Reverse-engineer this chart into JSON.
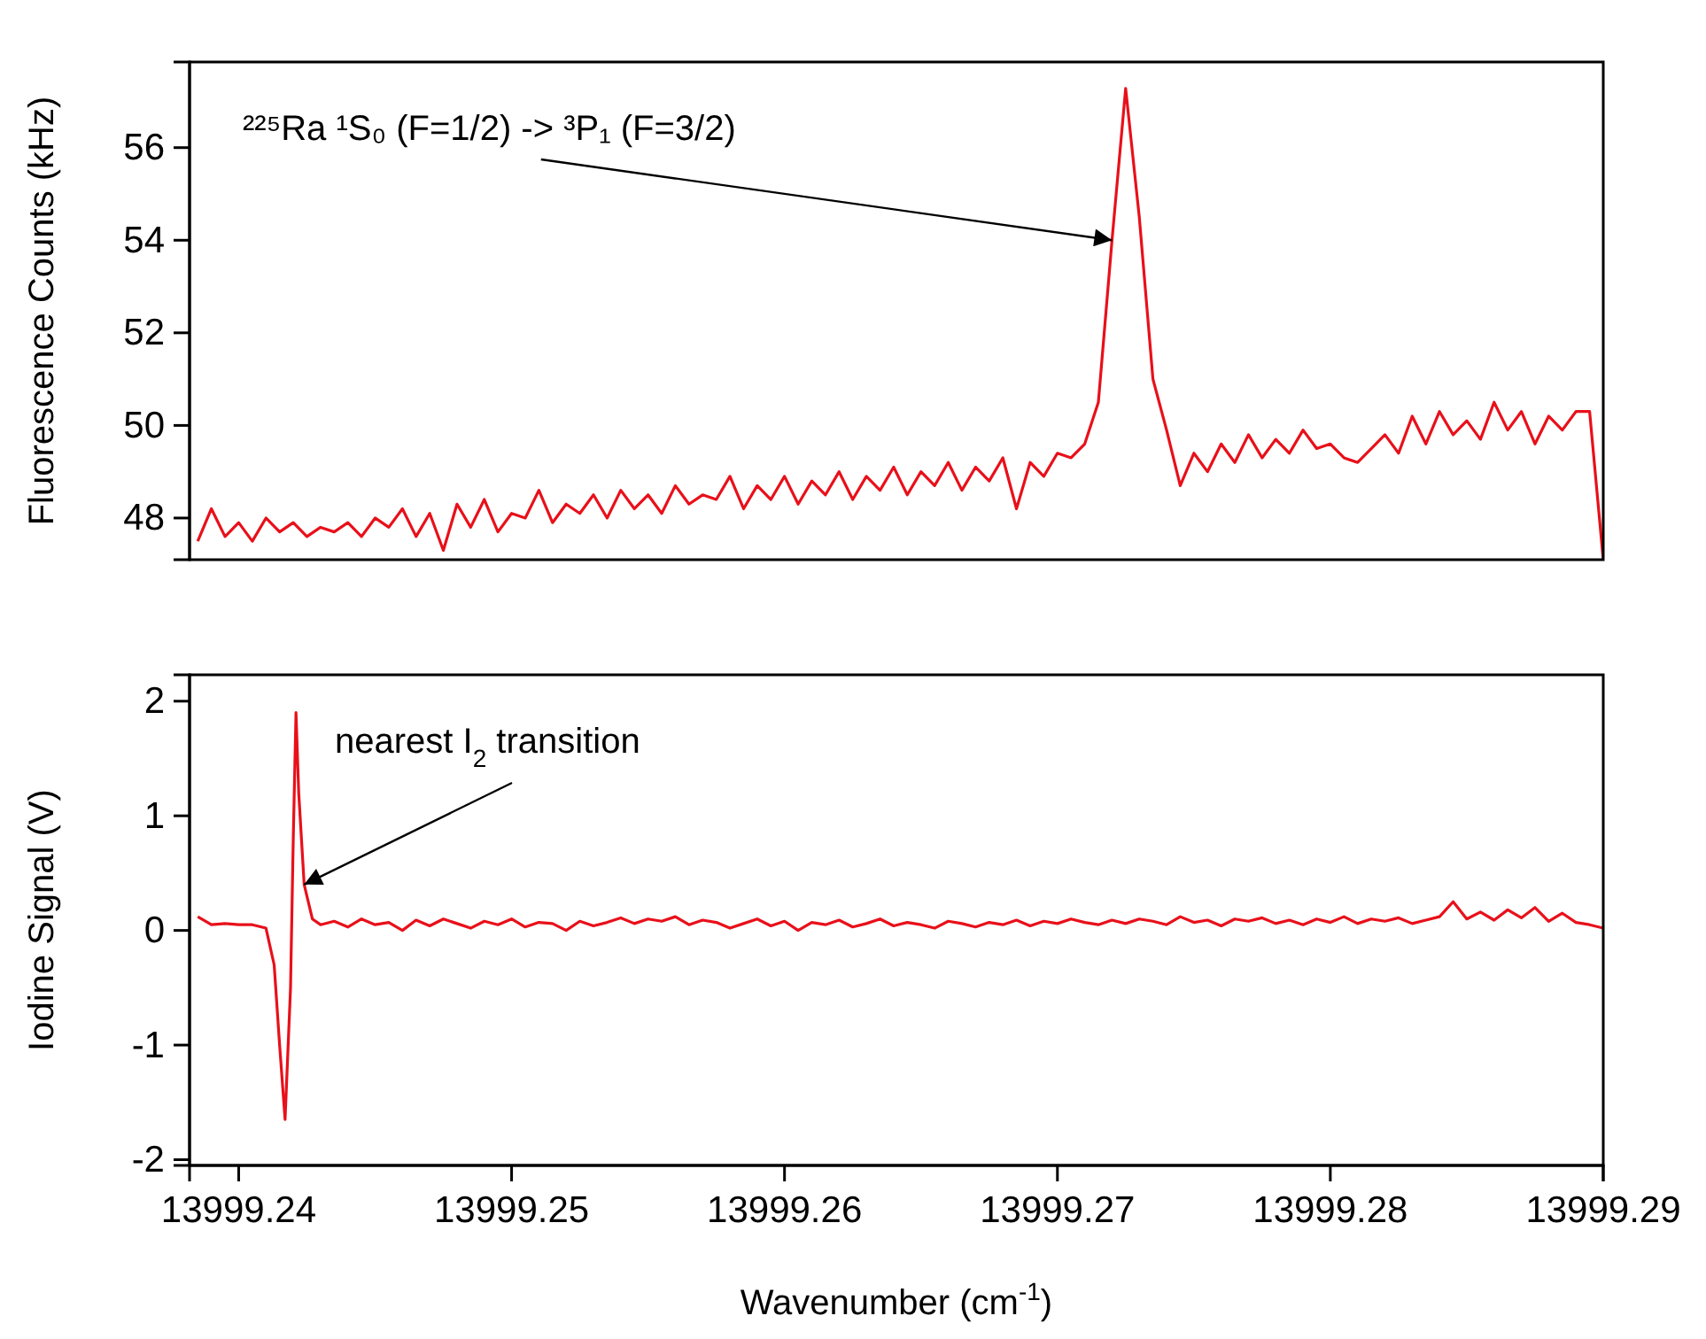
{
  "chart_data": [
    {
      "type": "line",
      "ylabel": "Fluorescence Counts (kHz)",
      "xlim": [
        13999.2382,
        13999.29
      ],
      "ylim": [
        47.1,
        57.85
      ],
      "yticks": [
        48,
        50,
        52,
        54,
        56
      ],
      "tick_labels": "y",
      "annotations": [
        {
          "text": "²²⁵Ra  ¹S₀ (F=1/2) -> ³P₁ (F=3/2)",
          "x": 13999.272,
          "y": 54.0
        }
      ],
      "series": [
        {
          "color": "#e8101a",
          "x": [
            13999.2385,
            13999.239,
            13999.2395,
            13999.24,
            13999.2405,
            13999.241,
            13999.2415,
            13999.242,
            13999.2425,
            13999.243,
            13999.2435,
            13999.244,
            13999.2445,
            13999.245,
            13999.2455,
            13999.246,
            13999.2465,
            13999.247,
            13999.2475,
            13999.248,
            13999.2485,
            13999.249,
            13999.2495,
            13999.25,
            13999.2505,
            13999.251,
            13999.2515,
            13999.252,
            13999.2525,
            13999.253,
            13999.2535,
            13999.254,
            13999.2545,
            13999.255,
            13999.2555,
            13999.256,
            13999.2565,
            13999.257,
            13999.2575,
            13999.258,
            13999.2585,
            13999.259,
            13999.2595,
            13999.26,
            13999.2605,
            13999.261,
            13999.2615,
            13999.262,
            13999.2625,
            13999.263,
            13999.2635,
            13999.264,
            13999.2645,
            13999.265,
            13999.2655,
            13999.266,
            13999.2665,
            13999.267,
            13999.2675,
            13999.268,
            13999.2685,
            13999.269,
            13999.2695,
            13999.27,
            13999.2705,
            13999.271,
            13999.2715,
            13999.272,
            13999.2725,
            13999.273,
            13999.2735,
            13999.274,
            13999.2745,
            13999.275,
            13999.2755,
            13999.276,
            13999.2765,
            13999.277,
            13999.2775,
            13999.278,
            13999.2785,
            13999.279,
            13999.2795,
            13999.28,
            13999.2805,
            13999.281,
            13999.2815,
            13999.282,
            13999.2825,
            13999.283,
            13999.2835,
            13999.284,
            13999.2845,
            13999.285,
            13999.2855,
            13999.286,
            13999.2865,
            13999.287,
            13999.2875,
            13999.288,
            13999.2885,
            13999.289,
            13999.2895,
            13999.29
          ],
          "values": [
            47.5,
            48.2,
            47.6,
            47.9,
            47.5,
            48.0,
            47.7,
            47.9,
            47.6,
            47.8,
            47.7,
            47.9,
            47.6,
            48.0,
            47.8,
            48.2,
            47.6,
            48.1,
            47.3,
            48.3,
            47.8,
            48.4,
            47.7,
            48.1,
            48.0,
            48.6,
            47.9,
            48.3,
            48.1,
            48.5,
            48.0,
            48.6,
            48.2,
            48.5,
            48.1,
            48.7,
            48.3,
            48.5,
            48.4,
            48.9,
            48.2,
            48.7,
            48.4,
            48.9,
            48.3,
            48.8,
            48.5,
            49.0,
            48.4,
            48.9,
            48.6,
            49.1,
            48.5,
            49.0,
            48.7,
            49.2,
            48.6,
            49.1,
            48.8,
            49.3,
            48.2,
            49.2,
            48.9,
            49.4,
            49.3,
            49.6,
            50.5,
            54.0,
            57.28,
            54.5,
            51.0,
            49.9,
            48.7,
            49.4,
            49.0,
            49.6,
            49.2,
            49.8,
            49.3,
            49.7,
            49.4,
            49.9,
            49.5,
            49.6,
            49.3,
            49.2,
            49.5,
            49.8,
            49.4,
            50.2,
            49.6,
            50.3,
            49.8,
            50.1,
            49.7,
            50.5,
            49.9,
            50.3,
            49.6,
            50.2,
            49.9,
            50.3,
            50.3,
            47.1
          ]
        }
      ]
    },
    {
      "type": "line",
      "ylabel": "Iodine Signal (V)",
      "xlabel": "Wavenumber (cm$^{-1}$)",
      "xlim": [
        13999.2382,
        13999.29
      ],
      "ylim": [
        -2.05,
        2.23
      ],
      "xticks": [
        13999.24,
        13999.25,
        13999.26,
        13999.27,
        13999.28,
        13999.29
      ],
      "yticks": [
        -2,
        -1,
        0,
        1,
        2
      ],
      "annotations": [
        {
          "text": "nearest I$_{2}$ transition",
          "x": 13999.2424,
          "y": 0.4
        }
      ],
      "series": [
        {
          "color": "#e8101a",
          "x": [
            13999.2385,
            13999.239,
            13999.2395,
            13999.24,
            13999.2405,
            13999.241,
            13999.2413,
            13999.2415,
            13999.2417,
            13999.2419,
            13999.242,
            13999.2421,
            13999.2422,
            13999.2424,
            13999.2427,
            13999.243,
            13999.2435,
            13999.244,
            13999.2445,
            13999.245,
            13999.2455,
            13999.246,
            13999.2465,
            13999.247,
            13999.2475,
            13999.248,
            13999.2485,
            13999.249,
            13999.2495,
            13999.25,
            13999.2505,
            13999.251,
            13999.2515,
            13999.252,
            13999.2525,
            13999.253,
            13999.2535,
            13999.254,
            13999.2545,
            13999.255,
            13999.2555,
            13999.256,
            13999.2565,
            13999.257,
            13999.2575,
            13999.258,
            13999.2585,
            13999.259,
            13999.2595,
            13999.26,
            13999.2605,
            13999.261,
            13999.2615,
            13999.262,
            13999.2625,
            13999.263,
            13999.2635,
            13999.264,
            13999.2645,
            13999.265,
            13999.2655,
            13999.266,
            13999.2665,
            13999.267,
            13999.2675,
            13999.268,
            13999.2685,
            13999.269,
            13999.2695,
            13999.27,
            13999.2705,
            13999.271,
            13999.2715,
            13999.272,
            13999.2725,
            13999.273,
            13999.2735,
            13999.274,
            13999.2745,
            13999.275,
            13999.2755,
            13999.276,
            13999.2765,
            13999.277,
            13999.2775,
            13999.278,
            13999.2785,
            13999.279,
            13999.2795,
            13999.28,
            13999.2805,
            13999.281,
            13999.2815,
            13999.282,
            13999.2825,
            13999.283,
            13999.2835,
            13999.284,
            13999.2845,
            13999.285,
            13999.2855,
            13999.286,
            13999.2865,
            13999.287,
            13999.2875,
            13999.288,
            13999.2885,
            13999.289,
            13999.2895,
            13999.29
          ],
          "values": [
            0.12,
            0.05,
            0.06,
            0.05,
            0.05,
            0.02,
            -0.3,
            -1.0,
            -1.65,
            -0.5,
            0.8,
            1.9,
            1.2,
            0.4,
            0.1,
            0.05,
            0.08,
            0.03,
            0.1,
            0.05,
            0.07,
            0.0,
            0.09,
            0.04,
            0.1,
            0.06,
            0.02,
            0.08,
            0.05,
            0.1,
            0.03,
            0.07,
            0.06,
            0.0,
            0.08,
            0.04,
            0.07,
            0.11,
            0.06,
            0.1,
            0.08,
            0.12,
            0.05,
            0.09,
            0.07,
            0.02,
            0.06,
            0.1,
            0.04,
            0.08,
            0.0,
            0.07,
            0.05,
            0.09,
            0.03,
            0.06,
            0.1,
            0.04,
            0.07,
            0.05,
            0.02,
            0.08,
            0.06,
            0.03,
            0.07,
            0.05,
            0.09,
            0.04,
            0.08,
            0.06,
            0.1,
            0.07,
            0.05,
            0.09,
            0.06,
            0.1,
            0.08,
            0.05,
            0.12,
            0.07,
            0.09,
            0.04,
            0.1,
            0.08,
            0.11,
            0.06,
            0.09,
            0.05,
            0.1,
            0.07,
            0.12,
            0.06,
            0.1,
            0.08,
            0.11,
            0.06,
            0.09,
            0.12,
            0.25,
            0.1,
            0.16,
            0.09,
            0.18,
            0.11,
            0.2,
            0.08,
            0.15,
            0.07,
            0.05,
            0.02
          ]
        }
      ]
    }
  ]
}
